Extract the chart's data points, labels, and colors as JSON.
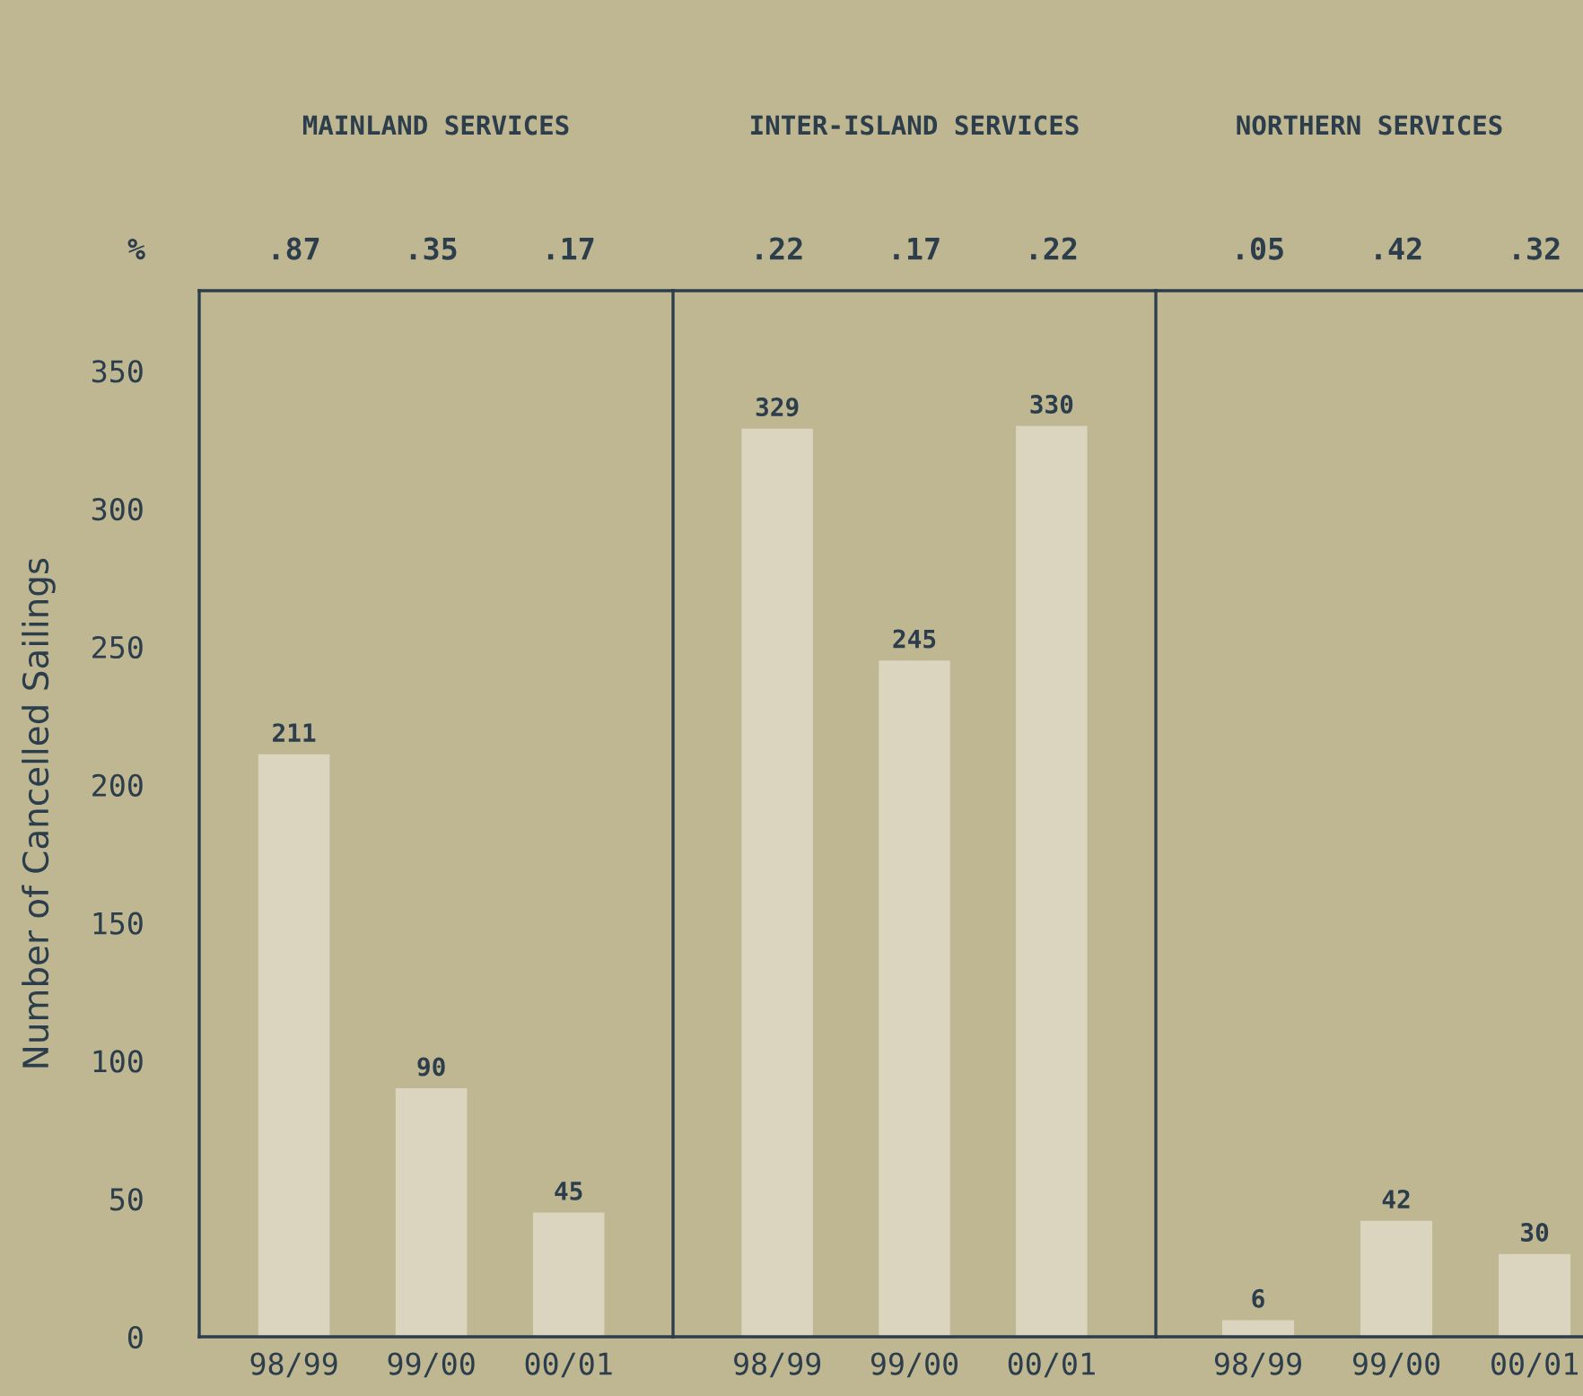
{
  "chart_data": [
    {
      "type": "bar",
      "title": "MAINLAND SERVICES",
      "ylabel": "Number of Cancelled Sailings",
      "categories": [
        "98/99",
        "99/00",
        "00/01"
      ],
      "values": [
        211,
        90,
        45
      ],
      "color": "#dbd4bf",
      "data_labels": true,
      "ylim": [
        0,
        379
      ],
      "yticks": [
        0,
        50,
        100,
        150,
        200,
        250,
        300,
        350
      ],
      "annotations": [
        "%",
        ".87",
        ".35",
        ".17"
      ]
    },
    {
      "type": "bar",
      "title": "INTER-ISLAND SERVICES",
      "categories": [
        "98/99",
        "99/00",
        "00/01"
      ],
      "values": [
        329,
        245,
        330
      ],
      "color": "#dbd4bf",
      "data_labels": true,
      "ylim": [
        0,
        379
      ],
      "tick_labels": "x",
      "annotations": [
        ".22",
        ".17",
        ".22"
      ]
    },
    {
      "type": "bar",
      "title": "NORTHERN SERVICES",
      "categories": [
        "98/99",
        "99/00",
        "00/01"
      ],
      "values": [
        6,
        42,
        30
      ],
      "color": "#dbd4bf",
      "data_labels": true,
      "ylim": [
        0,
        379
      ],
      "tick_labels": "x",
      "annotations": [
        ".05",
        ".42",
        ".32"
      ]
    }
  ]
}
